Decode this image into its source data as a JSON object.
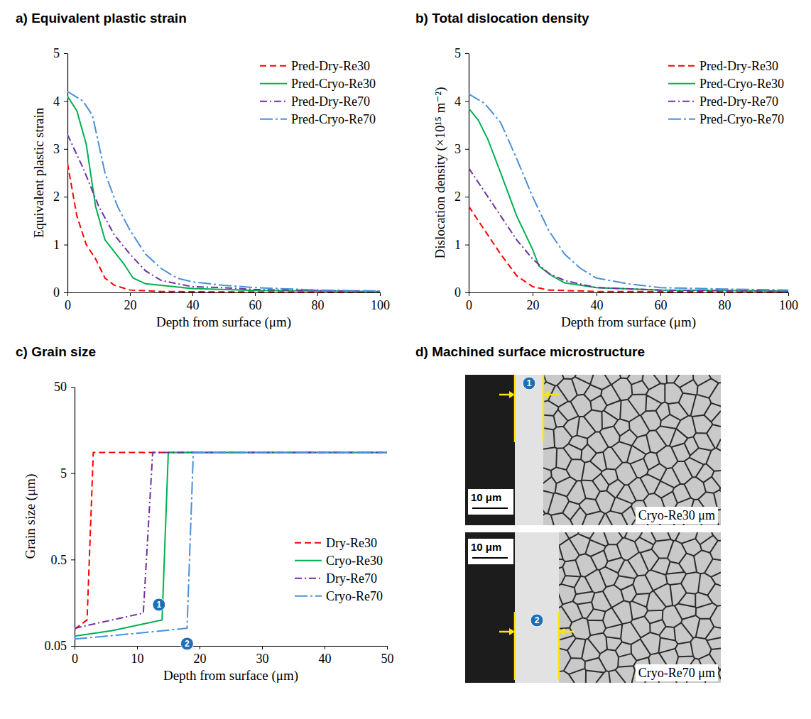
{
  "chart_data": [
    {
      "type": "line",
      "title": "a) Equivalent plastic strain",
      "xlabel": "Depth from surface (μm)",
      "ylabel": "Equivalent plastic strain",
      "xlim": [
        0,
        100
      ],
      "xticks": [
        0,
        20,
        40,
        60,
        80,
        100
      ],
      "ylim": [
        0,
        5
      ],
      "yticks": [
        0,
        1,
        2,
        3,
        4,
        5
      ],
      "grid": false,
      "legend": "upper right",
      "series": [
        {
          "name": "Pred-Dry-Re30",
          "color": "#ff0000",
          "line_style": "dashed",
          "x": [
            0,
            3,
            6,
            9,
            12,
            15,
            20,
            30,
            50,
            100
          ],
          "values": [
            2.7,
            1.6,
            1.0,
            0.7,
            0.3,
            0.15,
            0.05,
            0.02,
            0.01,
            0.01
          ]
        },
        {
          "name": "Pred-Cryo-Re30",
          "color": "#00b050",
          "line_style": "solid",
          "x": [
            0,
            3,
            6,
            9,
            12,
            18,
            21,
            25,
            40,
            60,
            100
          ],
          "values": [
            4.1,
            3.8,
            3.1,
            1.8,
            1.1,
            0.6,
            0.3,
            0.18,
            0.08,
            0.04,
            0.02
          ]
        },
        {
          "name": "Pred-Dry-Re70",
          "color": "#7030a0",
          "line_style": "dashdot",
          "x": [
            0,
            5,
            10,
            15,
            20,
            25,
            30,
            40,
            50,
            60,
            100
          ],
          "values": [
            3.3,
            2.6,
            1.8,
            1.2,
            0.8,
            0.45,
            0.25,
            0.12,
            0.1,
            0.06,
            0.02
          ]
        },
        {
          "name": "Pred-Cryo-Re70",
          "color": "#4a90d9",
          "line_style": "longdashdot",
          "x": [
            0,
            5,
            8,
            12,
            16,
            20,
            25,
            30,
            35,
            40,
            50,
            60,
            80,
            100
          ],
          "values": [
            4.2,
            4.0,
            3.7,
            2.5,
            1.8,
            1.3,
            0.8,
            0.5,
            0.3,
            0.22,
            0.15,
            0.1,
            0.05,
            0.03
          ]
        }
      ]
    },
    {
      "type": "line",
      "title": "b) Total dislocation density",
      "xlabel": "Depth from surface (μm)",
      "ylabel": "Dislocation density (×10¹⁵ m⁻²)",
      "xlim": [
        0,
        100
      ],
      "xticks": [
        0,
        20,
        40,
        60,
        80,
        100
      ],
      "ylim": [
        0,
        5
      ],
      "yticks": [
        0,
        1,
        2,
        3,
        4,
        5
      ],
      "grid": false,
      "legend": "upper right",
      "series": [
        {
          "name": "Pred-Dry-Re30",
          "color": "#ff0000",
          "line_style": "dashed",
          "x": [
            0,
            5,
            10,
            15,
            20,
            25,
            40,
            100
          ],
          "values": [
            1.8,
            1.3,
            0.8,
            0.35,
            0.12,
            0.05,
            0.02,
            0.01
          ]
        },
        {
          "name": "Pred-Cryo-Re30",
          "color": "#00b050",
          "line_style": "solid",
          "x": [
            0,
            3,
            6,
            10,
            15,
            20,
            22,
            26,
            30,
            40,
            60,
            100
          ],
          "values": [
            3.85,
            3.6,
            3.2,
            2.5,
            1.6,
            0.9,
            0.55,
            0.35,
            0.2,
            0.1,
            0.05,
            0.03
          ]
        },
        {
          "name": "Pred-Dry-Re70",
          "color": "#7030a0",
          "line_style": "dashdot",
          "x": [
            0,
            5,
            10,
            15,
            20,
            25,
            30,
            40,
            60,
            100
          ],
          "values": [
            2.6,
            2.1,
            1.6,
            1.1,
            0.7,
            0.4,
            0.25,
            0.1,
            0.05,
            0.02
          ]
        },
        {
          "name": "Pred-Cryo-Re70",
          "color": "#4a90d9",
          "line_style": "longdashdot",
          "x": [
            0,
            5,
            10,
            15,
            20,
            25,
            30,
            35,
            40,
            50,
            60,
            80,
            100
          ],
          "values": [
            4.15,
            3.95,
            3.55,
            2.8,
            2.0,
            1.3,
            0.8,
            0.5,
            0.3,
            0.18,
            0.1,
            0.07,
            0.05
          ]
        }
      ]
    },
    {
      "type": "line",
      "title": "c) Grain size",
      "xlabel": "Depth from surface (μm)",
      "ylabel": "Grain size (μm)",
      "xlim": [
        0,
        50
      ],
      "xticks": [
        0,
        10,
        20,
        30,
        40,
        50
      ],
      "ylim": [
        0.05,
        50
      ],
      "yticks": [
        0.05,
        0.5,
        5,
        50
      ],
      "log": "y",
      "grid": false,
      "legend": "lower right",
      "series": [
        {
          "name": "Dry-Re30",
          "color": "#ff0000",
          "line_style": "dashed",
          "x": [
            0,
            2,
            3,
            50
          ],
          "values": [
            0.078,
            0.1,
            8.7,
            8.7
          ]
        },
        {
          "name": "Cryo-Re30",
          "color": "#00b050",
          "line_style": "solid",
          "x": [
            0,
            6,
            14,
            15,
            50
          ],
          "values": [
            0.065,
            0.075,
            0.1,
            8.7,
            8.7
          ]
        },
        {
          "name": "Dry-Re70",
          "color": "#7030a0",
          "line_style": "dashdot",
          "x": [
            0,
            11,
            12.5,
            50
          ],
          "values": [
            0.08,
            0.12,
            8.7,
            8.7
          ]
        },
        {
          "name": "Cryo-Re70",
          "color": "#4a90d9",
          "line_style": "longdashdot",
          "x": [
            0,
            10,
            18,
            19,
            50
          ],
          "values": [
            0.06,
            0.07,
            0.08,
            8.7,
            8.7
          ]
        }
      ],
      "annotations": [
        {
          "label": "1",
          "x": 13.5,
          "y": 0.15
        },
        {
          "label": "2",
          "x": 18,
          "y": 0.053
        }
      ]
    }
  ],
  "micrograph": {
    "title": "d) Machined surface microstructure",
    "images": [
      {
        "caption": "Cryo-Re30 μm",
        "scale_bar": "10 μm",
        "marker": "1"
      },
      {
        "caption": "Cryo-Re70 μm",
        "scale_bar": "10 μm",
        "marker": "2"
      }
    ]
  }
}
